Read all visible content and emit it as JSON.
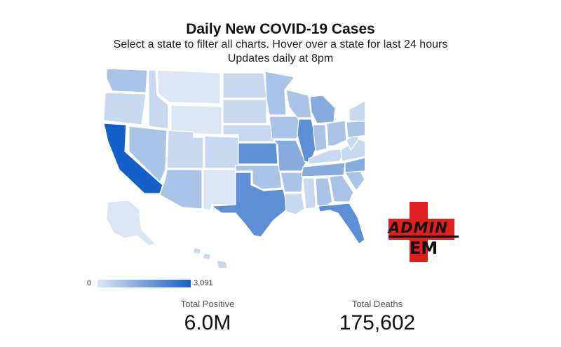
{
  "header": {
    "title": "Daily New COVID-19 Cases",
    "subtitle": "Select a state to filter all charts. Hover over a state for last 24 hours",
    "subtitle2": "Updates daily at 8pm"
  },
  "legend": {
    "min_label": "0",
    "max_label": "3,091",
    "min_color": "#dbe6f5",
    "max_color": "#1560c8"
  },
  "stats": {
    "total_positive_label": "Total Positive",
    "total_positive_value": "6.0M",
    "total_deaths_label": "Total Deaths",
    "total_deaths_value": "175,602"
  },
  "logo": {
    "line1": "ADMIN",
    "line2": "EM",
    "cross_color": "#e02020"
  },
  "chart_data": {
    "type": "choropleth",
    "title": "Daily New COVID-19 Cases",
    "scale": {
      "min": 0,
      "max": 3091
    },
    "color_levels": [
      "#dbe6f5",
      "#c7d8ef",
      "#aac4e8",
      "#86acdf",
      "#5d8fd6",
      "#1560c8"
    ]
  }
}
